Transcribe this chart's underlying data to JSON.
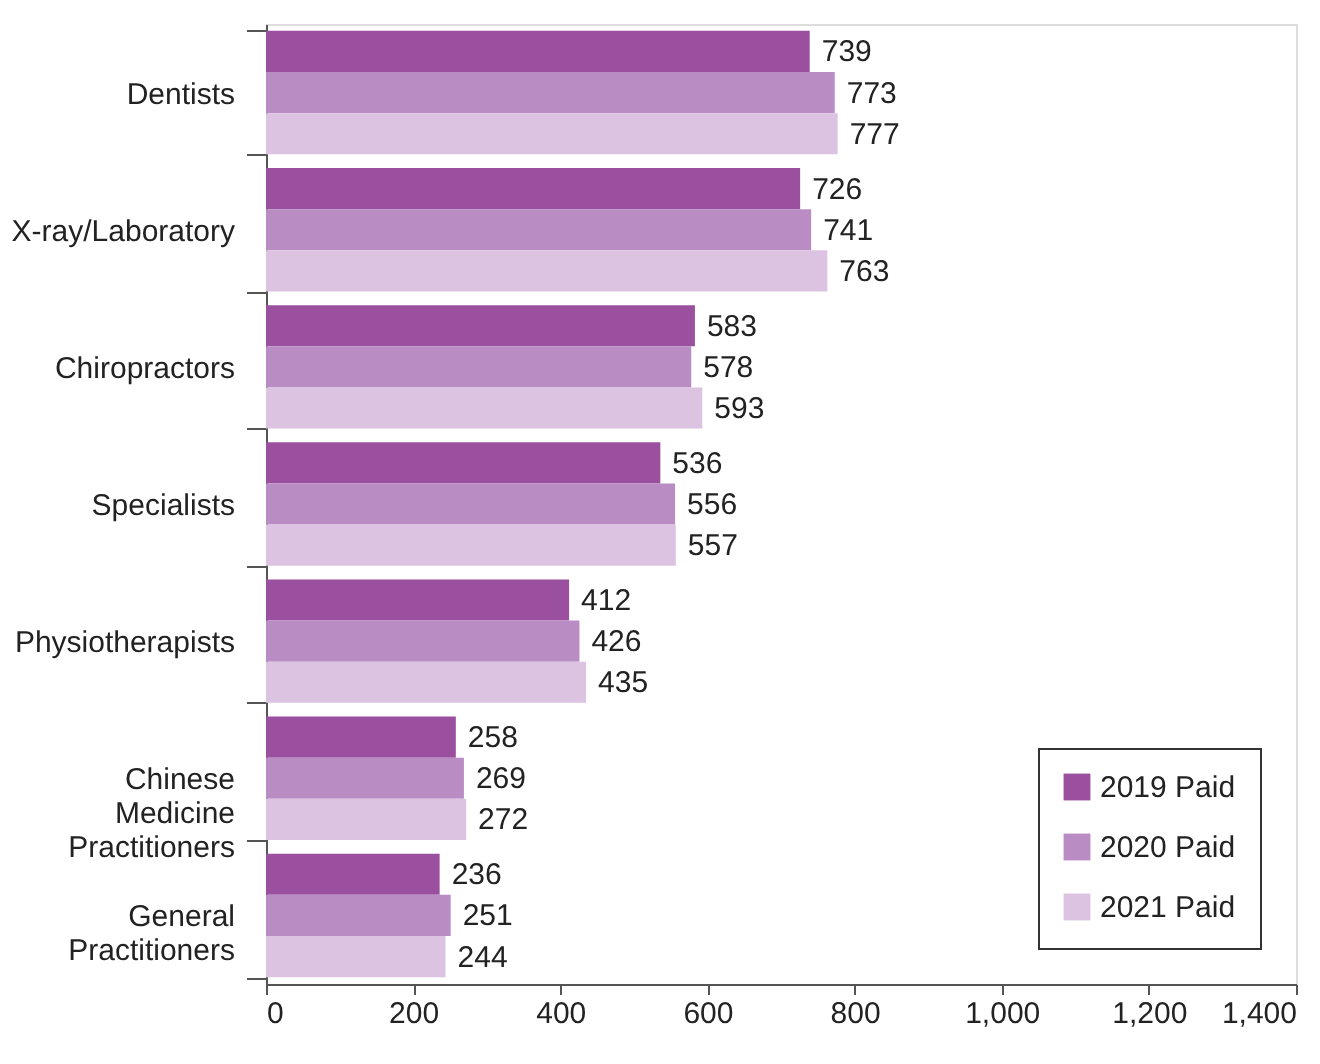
{
  "chart_data": {
    "type": "bar",
    "orientation": "horizontal",
    "categories": [
      "Dentists",
      "X-ray/Laboratory",
      "Chiropractors",
      "Specialists",
      "Physiotherapists",
      "Chinese Medicine Practitioners",
      "General Practitioners"
    ],
    "series": [
      {
        "name": "2019 Paid",
        "color": "#9b4f9f",
        "values": [
          739,
          726,
          583,
          536,
          412,
          258,
          236
        ]
      },
      {
        "name": "2020 Paid",
        "color": "#b98cc4",
        "values": [
          773,
          741,
          578,
          556,
          426,
          269,
          251
        ]
      },
      {
        "name": "2021 Paid",
        "color": "#dcc3e1",
        "values": [
          777,
          763,
          593,
          557,
          435,
          272,
          244
        ]
      }
    ],
    "xlim": [
      0,
      1400
    ],
    "xticks": [
      {
        "value": 0,
        "label": "0"
      },
      {
        "value": 200,
        "label": "200"
      },
      {
        "value": 400,
        "label": "400"
      },
      {
        "value": 600,
        "label": "600"
      },
      {
        "value": 800,
        "label": "800"
      },
      {
        "value": 1000,
        "label": "1,000"
      },
      {
        "value": 1200,
        "label": "1,200"
      },
      {
        "value": 1400,
        "label": "1,400"
      }
    ],
    "data_labels": true,
    "legend": "bottom right",
    "grid": false
  }
}
